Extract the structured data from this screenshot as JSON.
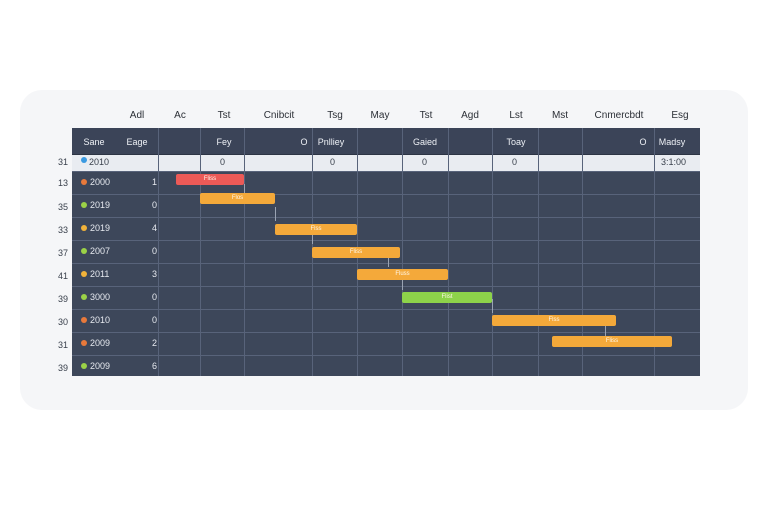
{
  "timeline_header": [
    "Adl",
    "Ac",
    "Tst",
    "Cnibcit",
    "Tsg",
    "May",
    "Tst",
    "Agd",
    "Lst",
    "Mst",
    "Cnmercbdt",
    "Esg"
  ],
  "grid_header": {
    "col_name": "Sane",
    "col_stage": "Eage",
    "key": "Fey",
    "circle1": "O",
    "policy": "Pnlliey",
    "gaied": "Gaied",
    "today": "Toay",
    "circle2": "O",
    "madsy": "Madsy"
  },
  "selected_row": {
    "left_num": "31",
    "label": "2010",
    "dot_color": "#3b9ae1",
    "v1": "0",
    "v2": "0",
    "v3": "0",
    "v4": "0",
    "end": "3:1:00"
  },
  "rows": [
    {
      "left_num": "13",
      "year": "2000",
      "count": "1",
      "dot_color": "#e8793b"
    },
    {
      "left_num": "35",
      "year": "2019",
      "count": "0",
      "dot_color": "#9bd247"
    },
    {
      "left_num": "33",
      "year": "2019",
      "count": "4",
      "dot_color": "#f2b33a"
    },
    {
      "left_num": "37",
      "year": "2007",
      "count": "0",
      "dot_color": "#9bd247"
    },
    {
      "left_num": "41",
      "year": "2011",
      "count": "3",
      "dot_color": "#f2b33a"
    },
    {
      "left_num": "39",
      "year": "3000",
      "count": "0",
      "dot_color": "#9bd247"
    },
    {
      "left_num": "30",
      "year": "2010",
      "count": "0",
      "dot_color": "#e8793b"
    },
    {
      "left_num": "31",
      "year": "2009",
      "count": "2",
      "dot_color": "#e8793b"
    },
    {
      "left_num": "39",
      "year": "2009",
      "count": "6",
      "dot_color": "#9bd247"
    }
  ],
  "tasks": [
    {
      "label": "Fliss",
      "color": "#ec5a57"
    },
    {
      "label": "Flos",
      "color": "#f4a93a"
    },
    {
      "label": "Flss",
      "color": "#f4a93a"
    },
    {
      "label": "Fliss",
      "color": "#f4a93a"
    },
    {
      "label": "Fluss",
      "color": "#f4a93a"
    },
    {
      "label": "Flist",
      "color": "#8dd34a"
    },
    {
      "label": "Flss",
      "color": "#f4a93a"
    },
    {
      "label": "Fliss",
      "color": "#f4a93a"
    }
  ]
}
